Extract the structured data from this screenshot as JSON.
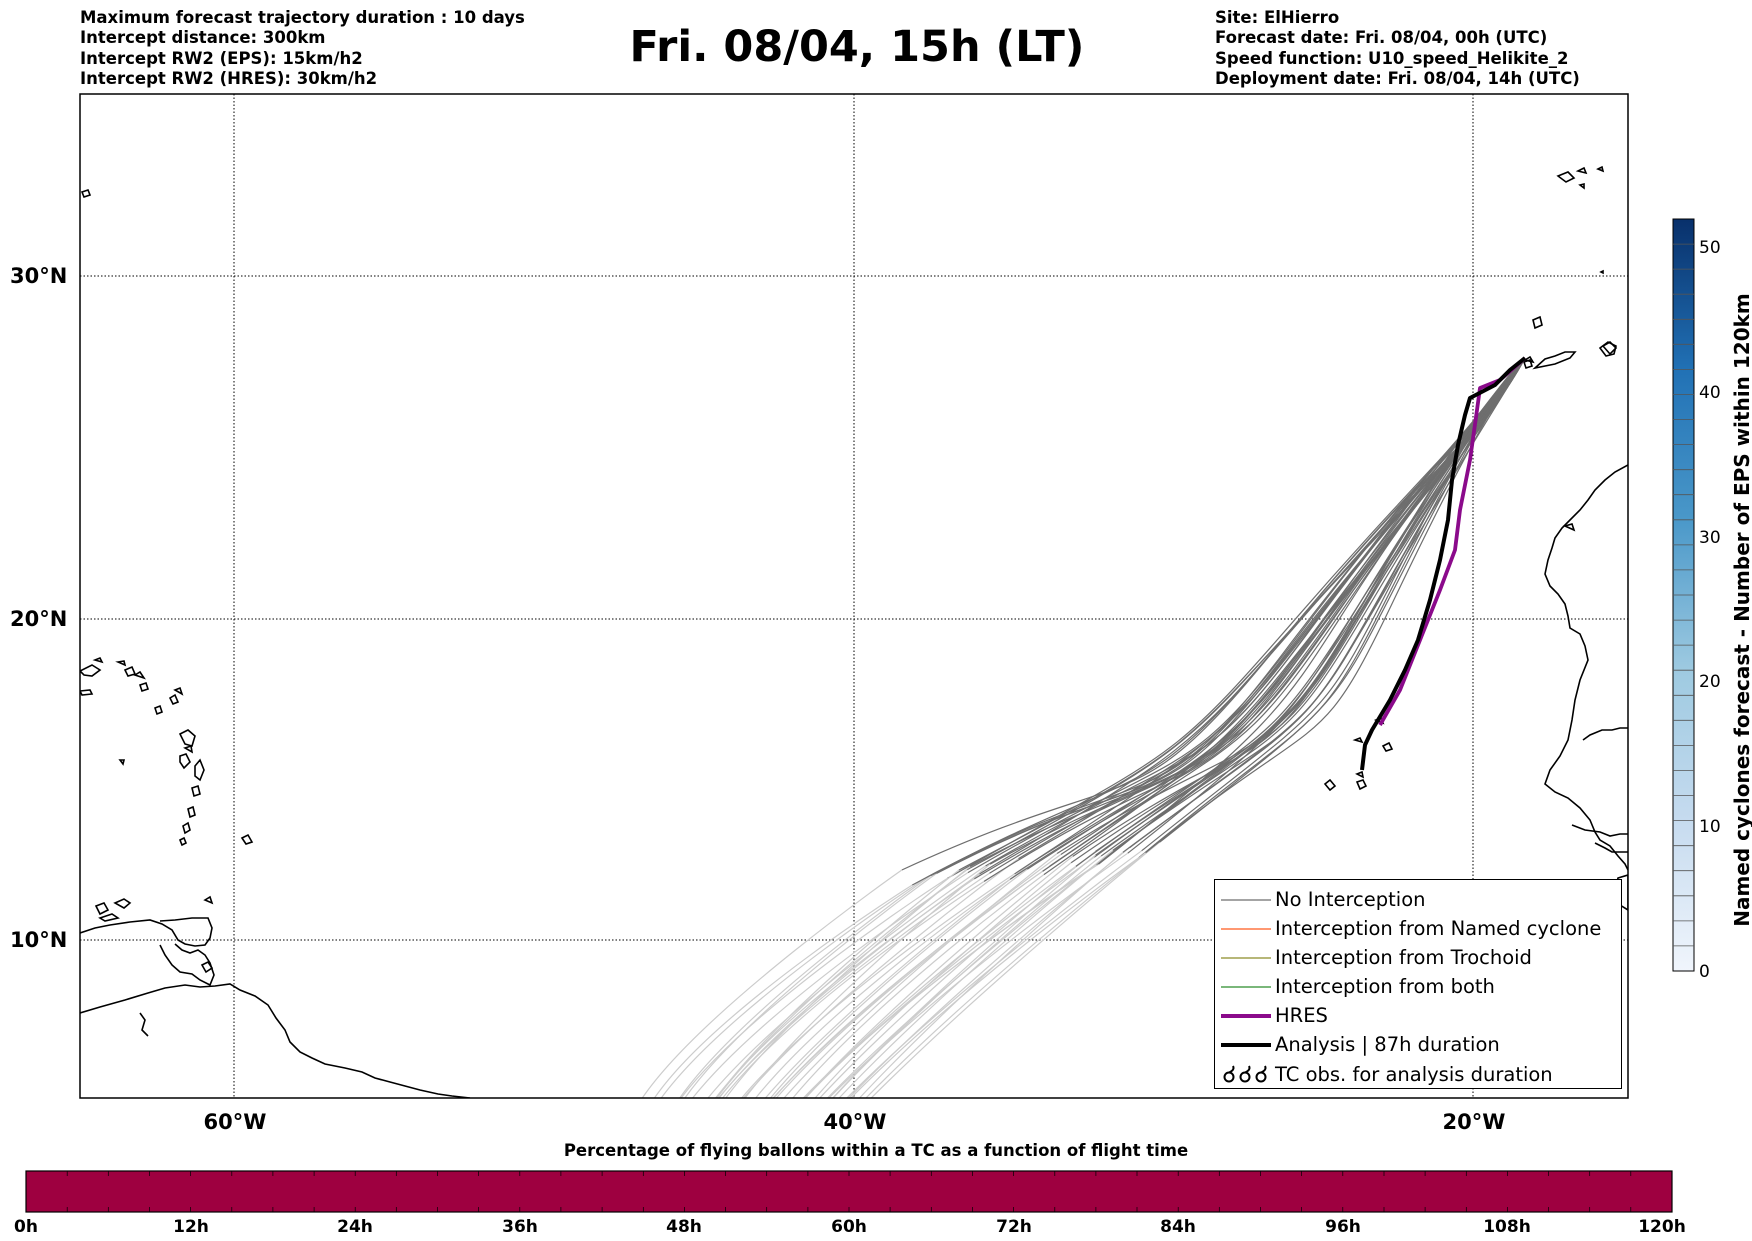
{
  "header": {
    "left_lines": [
      "Maximum forecast trajectory duration : 10 days",
      "Intercept distance: 300km",
      "Intercept RW2 (EPS):  15km/h2",
      "Intercept RW2 (HRES): 30km/h2"
    ],
    "title": "Fri. 08/04, 15h (LT)",
    "right_lines": [
      "Site: ElHierro",
      "Forecast date: Fri. 08/04, 00h (UTC)",
      "Speed function: U10_speed_Helikite_2",
      "Deployment date: Fri. 08/04, 14h (UTC)"
    ]
  },
  "map": {
    "lon_range": [
      -65,
      -15
    ],
    "lat_range": [
      5.4,
      34.7
    ],
    "lat_labels": [
      "30°N",
      "20°N",
      "10°N"
    ],
    "lon_labels": [
      "60°W",
      "40°W",
      "20°W"
    ],
    "colors": {
      "no_interception_early": "#6e6e6e",
      "no_interception_late": "#cccccc",
      "named_cyclone": "#ff5a1e",
      "trochoid": "#8c8c28",
      "both": "#2a8c2a",
      "hres": "#8b0a8b",
      "analysis": "#000000"
    }
  },
  "legend": {
    "items": [
      {
        "label": "No Interception",
        "icon": "thin-grey-line"
      },
      {
        "label": "Interception from Named cyclone",
        "icon": "thin-orange-line"
      },
      {
        "label": "Interception from Trochoid",
        "icon": "thin-olive-line"
      },
      {
        "label": "Interception from both",
        "icon": "thin-green-line"
      },
      {
        "label": "HRES",
        "icon": "thick-purple-line"
      },
      {
        "label": "Analysis | 87h duration",
        "icon": "thick-black-line"
      },
      {
        "label": "TC obs. for analysis duration",
        "icon": "cyclone-symbols-icon"
      }
    ]
  },
  "colorbar": {
    "title": "Named cyclones forecast - Number of EPS within 120km",
    "ticks": [
      "0",
      "10",
      "20",
      "30",
      "40",
      "50"
    ],
    "range": [
      0,
      52
    ]
  },
  "flight_time_bar": {
    "title": "Percentage of flying ballons within a TC as a function of flight time",
    "hour_labels": [
      "0h",
      "12h",
      "24h",
      "36h",
      "48h",
      "60h",
      "72h",
      "84h",
      "96h",
      "108h",
      "120h"
    ],
    "fill_color": "#9e0040"
  }
}
